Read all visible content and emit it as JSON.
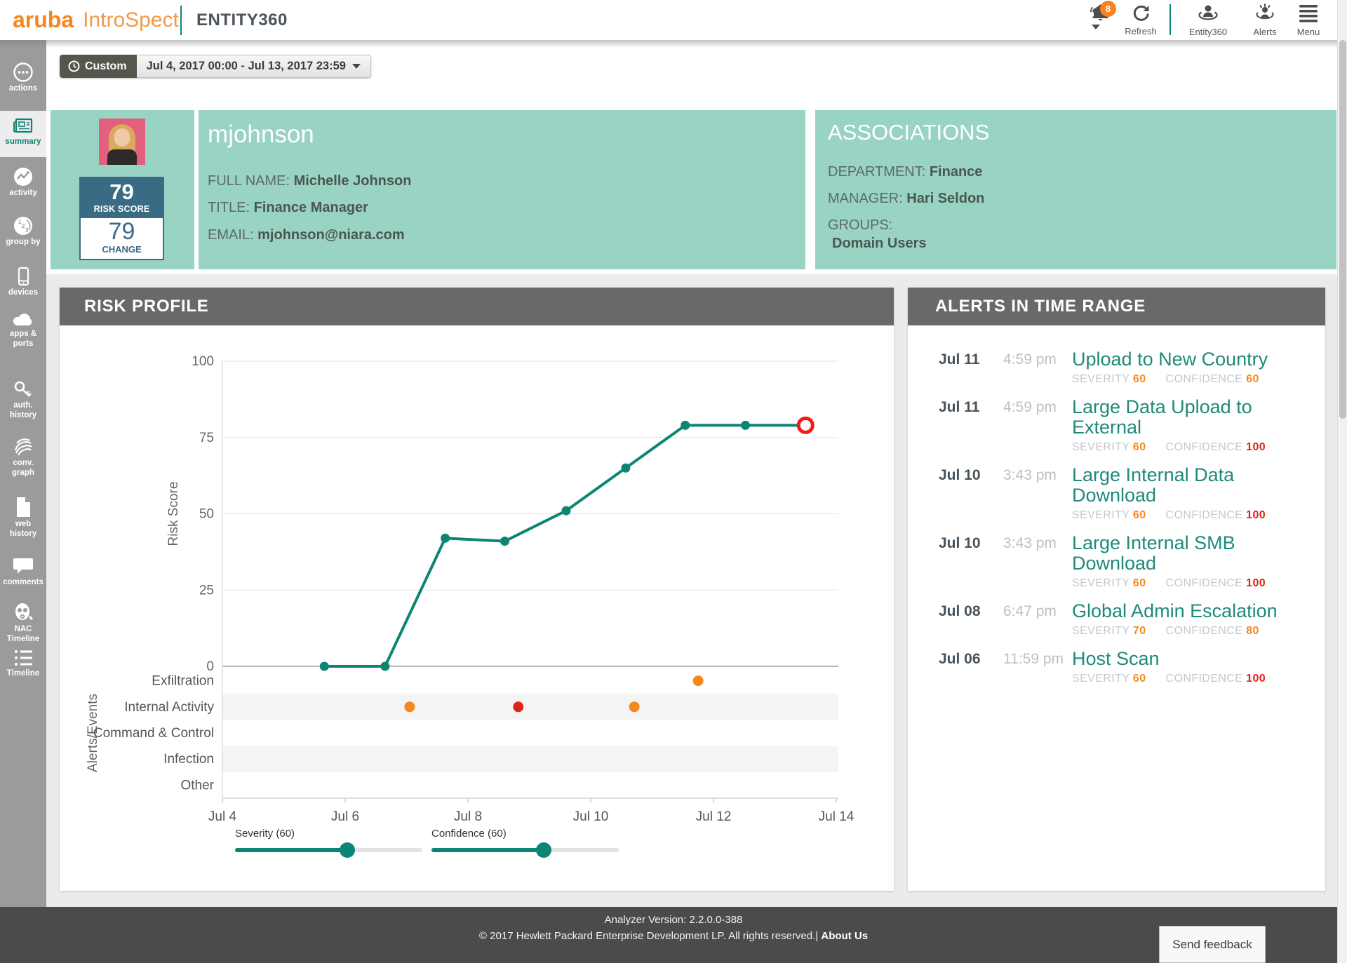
{
  "header": {
    "brand": "aruba",
    "product": "IntroSpect",
    "page_title": "ENTITY360",
    "nav": {
      "notifications_badge": "8",
      "refresh_label": "Refresh",
      "entity360_label": "Entity360",
      "alerts_label": "Alerts",
      "menu_label": "Menu"
    }
  },
  "toolbar": {
    "range_type_label": "Custom",
    "range_value": "Jul 4, 2017 00:00 - Jul 13, 2017 23:59"
  },
  "sidebar": {
    "items": [
      {
        "id": "actions",
        "lines": [
          "actions"
        ]
      },
      {
        "id": "summary",
        "lines": [
          "summary"
        ],
        "active": true
      },
      {
        "id": "activity",
        "lines": [
          "activity"
        ]
      },
      {
        "id": "group-by",
        "lines": [
          "group by"
        ]
      },
      {
        "id": "devices",
        "lines": [
          "devices"
        ]
      },
      {
        "id": "apps-ports",
        "lines": [
          "apps &",
          "ports"
        ]
      },
      {
        "id": "auth-history",
        "lines": [
          "auth.",
          "history"
        ]
      },
      {
        "id": "conv-graph",
        "lines": [
          "conv.",
          "graph"
        ]
      },
      {
        "id": "web-history",
        "lines": [
          "web",
          "history"
        ]
      },
      {
        "id": "comments",
        "lines": [
          "comments"
        ]
      },
      {
        "id": "nac-timeline",
        "lines": [
          "NAC",
          "Timeline"
        ]
      },
      {
        "id": "timeline",
        "lines": [
          "Timeline"
        ]
      }
    ]
  },
  "profile": {
    "username": "mjohnson",
    "risk_score": "79",
    "risk_score_label": "RISK SCORE",
    "change_value": "79",
    "change_label": "CHANGE",
    "fields": [
      {
        "label": "FULL NAME:",
        "value": "Michelle Johnson"
      },
      {
        "label": "TITLE:",
        "value": "Finance Manager"
      },
      {
        "label": "EMAIL:",
        "value": "mjohnson@niara.com"
      }
    ]
  },
  "associations": {
    "title": "ASSOCIATIONS",
    "fields": [
      {
        "label": "DEPARTMENT:",
        "value": "Finance"
      },
      {
        "label": "MANAGER:",
        "value": "Hari Seldon"
      }
    ],
    "groups_label": "GROUPS:",
    "groups": [
      "Domain Users"
    ]
  },
  "risk_profile": {
    "title": "RISK PROFILE",
    "sliders": [
      {
        "label": "Severity (60)",
        "value": 60
      },
      {
        "label": "Confidence (60)",
        "value": 60
      }
    ]
  },
  "chart_data": {
    "type": "line",
    "ylabel": "Risk Score",
    "ylabel_events": "Alerts/Events",
    "ylim": [
      0,
      100
    ],
    "yticks": [
      0,
      25,
      50,
      75,
      100
    ],
    "x_ticks": [
      "Jul 4",
      "Jul 6",
      "Jul 8",
      "Jul 10",
      "Jul 12",
      "Jul 14"
    ],
    "x_tick_days": [
      4,
      6,
      8,
      10,
      12,
      14
    ],
    "series": [
      {
        "name": "Risk Score",
        "color": "#0e8474",
        "points": [
          {
            "day": 5.66,
            "value": 0
          },
          {
            "day": 6.65,
            "value": 0
          },
          {
            "day": 7.63,
            "value": 42
          },
          {
            "day": 8.6,
            "value": 41
          },
          {
            "day": 9.6,
            "value": 51
          },
          {
            "day": 10.57,
            "value": 65
          },
          {
            "day": 11.54,
            "value": 79
          },
          {
            "day": 12.52,
            "value": 79
          }
        ],
        "current_marker": {
          "day": 13.5,
          "value": 79,
          "color": "#ee1c1c"
        }
      }
    ],
    "event_categories": [
      "Exfiltration",
      "Internal Activity",
      "Command & Control",
      "Infection",
      "Other"
    ],
    "events": [
      {
        "category": "Exfiltration",
        "day": 11.75,
        "color": "#f6891e"
      },
      {
        "category": "Internal Activity",
        "day": 7.05,
        "color": "#f6891e"
      },
      {
        "category": "Internal Activity",
        "day": 8.82,
        "color": "#e0231a"
      },
      {
        "category": "Internal Activity",
        "day": 10.71,
        "color": "#f6891e"
      }
    ]
  },
  "alerts_panel": {
    "title": "ALERTS IN TIME RANGE",
    "severity_label": "SEVERITY",
    "confidence_label": "CONFIDENCE",
    "items": [
      {
        "date": "Jul 11",
        "time": "4:59 pm",
        "title": "Upload to New Country",
        "severity": 60,
        "confidence": 60
      },
      {
        "date": "Jul 11",
        "time": "4:59 pm",
        "title": "Large Data Upload to External",
        "severity": 60,
        "confidence": 100
      },
      {
        "date": "Jul 10",
        "time": "3:43 pm",
        "title": "Large Internal Data Download",
        "severity": 60,
        "confidence": 100
      },
      {
        "date": "Jul 10",
        "time": "3:43 pm",
        "title": "Large Internal SMB Download",
        "severity": 60,
        "confidence": 100
      },
      {
        "date": "Jul 08",
        "time": "6:47 pm",
        "title": "Global Admin Escalation",
        "severity": 70,
        "confidence": 80
      },
      {
        "date": "Jul 06",
        "time": "11:59 pm",
        "title": "Host Scan",
        "severity": 60,
        "confidence": 100
      }
    ]
  },
  "footer": {
    "version": "Analyzer Version: 2.2.0.0-388",
    "copyright": "© 2017 Hewlett Packard Enterprise Development LP. All rights reserved.|",
    "about_link": "About Us",
    "feedback_button": "Send feedback"
  },
  "colors": {
    "accent_teal": "#0e8474",
    "panel_teal": "#99d3c4",
    "orange": "#f6891e",
    "red": "#e0231a",
    "risk_badge_blue": "#3a6b85"
  }
}
